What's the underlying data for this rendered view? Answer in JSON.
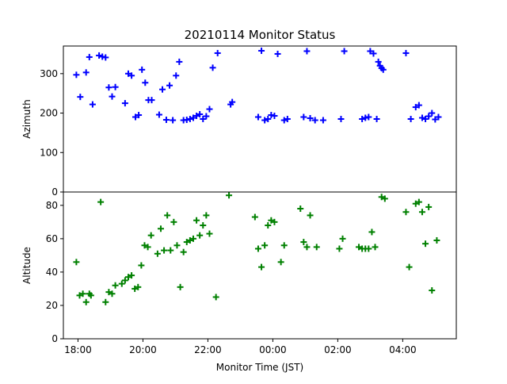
{
  "chart_data": {
    "type": "scatter",
    "title": "20210114 Monitor Status",
    "xlabel": "Monitor Time (JST)",
    "x_unit": "hours",
    "x_ticks": [
      {
        "value": 18,
        "label": "18:00"
      },
      {
        "value": 20,
        "label": "20:00"
      },
      {
        "value": 22,
        "label": "22:00"
      },
      {
        "value": 24,
        "label": "00:00"
      },
      {
        "value": 26,
        "label": "02:00"
      },
      {
        "value": 28,
        "label": "04:00"
      }
    ],
    "xlim": [
      17.55,
      29.65
    ],
    "colors": {
      "azimuth": "#0000ff",
      "altitude": "#008000"
    },
    "panels": [
      {
        "key": "azimuth",
        "ylabel": "Azimuth",
        "ylim": [
          0,
          370
        ],
        "yticks": [
          0,
          100,
          200,
          300
        ],
        "points": [
          [
            17.95,
            297
          ],
          [
            18.07,
            241
          ],
          [
            18.25,
            303
          ],
          [
            18.35,
            342
          ],
          [
            18.45,
            222
          ],
          [
            18.65,
            346
          ],
          [
            18.75,
            343
          ],
          [
            18.85,
            341
          ],
          [
            18.95,
            265
          ],
          [
            19.05,
            242
          ],
          [
            19.15,
            266
          ],
          [
            19.45,
            225
          ],
          [
            19.55,
            300
          ],
          [
            19.65,
            295
          ],
          [
            19.77,
            190
          ],
          [
            19.87,
            195
          ],
          [
            19.97,
            310
          ],
          [
            20.07,
            277
          ],
          [
            20.17,
            233
          ],
          [
            20.27,
            233
          ],
          [
            20.5,
            196
          ],
          [
            20.6,
            260
          ],
          [
            20.72,
            183
          ],
          [
            20.82,
            270
          ],
          [
            20.92,
            182
          ],
          [
            21.02,
            295
          ],
          [
            21.12,
            330
          ],
          [
            21.25,
            182
          ],
          [
            21.35,
            183
          ],
          [
            21.45,
            185
          ],
          [
            21.55,
            188
          ],
          [
            21.65,
            193
          ],
          [
            21.75,
            197
          ],
          [
            21.85,
            185
          ],
          [
            21.95,
            192
          ],
          [
            22.05,
            210
          ],
          [
            22.15,
            315
          ],
          [
            22.3,
            352
          ],
          [
            22.7,
            222
          ],
          [
            22.75,
            228
          ],
          [
            23.55,
            190
          ],
          [
            23.65,
            358
          ],
          [
            23.75,
            182
          ],
          [
            23.85,
            185
          ],
          [
            23.95,
            195
          ],
          [
            24.05,
            193
          ],
          [
            24.15,
            350
          ],
          [
            24.35,
            182
          ],
          [
            24.45,
            185
          ],
          [
            24.95,
            190
          ],
          [
            25.05,
            357
          ],
          [
            25.15,
            187
          ],
          [
            25.3,
            182
          ],
          [
            25.55,
            182
          ],
          [
            26.1,
            185
          ],
          [
            26.2,
            357
          ],
          [
            26.75,
            185
          ],
          [
            26.85,
            188
          ],
          [
            26.95,
            190
          ],
          [
            27.0,
            357
          ],
          [
            27.1,
            351
          ],
          [
            27.2,
            185
          ],
          [
            27.25,
            330
          ],
          [
            27.3,
            320
          ],
          [
            27.35,
            314
          ],
          [
            27.4,
            310
          ],
          [
            28.1,
            352
          ],
          [
            28.25,
            185
          ],
          [
            28.4,
            215
          ],
          [
            28.5,
            220
          ],
          [
            28.6,
            188
          ],
          [
            28.7,
            185
          ],
          [
            28.8,
            192
          ],
          [
            28.9,
            200
          ],
          [
            29.0,
            184
          ],
          [
            29.1,
            190
          ]
        ]
      },
      {
        "key": "altitude",
        "ylabel": "Altitude",
        "ylim": [
          0,
          88
        ],
        "yticks": [
          0,
          20,
          40,
          60,
          80
        ],
        "points": [
          [
            17.95,
            46
          ],
          [
            18.05,
            26
          ],
          [
            18.15,
            27
          ],
          [
            18.25,
            22
          ],
          [
            18.35,
            27
          ],
          [
            18.4,
            26
          ],
          [
            18.7,
            82
          ],
          [
            18.85,
            22
          ],
          [
            18.95,
            28
          ],
          [
            19.05,
            27
          ],
          [
            19.15,
            32
          ],
          [
            19.35,
            33
          ],
          [
            19.45,
            35
          ],
          [
            19.55,
            37
          ],
          [
            19.65,
            38
          ],
          [
            19.75,
            30
          ],
          [
            19.85,
            31
          ],
          [
            19.95,
            44
          ],
          [
            20.05,
            56
          ],
          [
            20.15,
            55
          ],
          [
            20.25,
            62
          ],
          [
            20.45,
            51
          ],
          [
            20.55,
            66
          ],
          [
            20.65,
            53
          ],
          [
            20.75,
            74
          ],
          [
            20.85,
            53
          ],
          [
            20.95,
            70
          ],
          [
            21.05,
            56
          ],
          [
            21.15,
            31
          ],
          [
            21.25,
            52
          ],
          [
            21.35,
            58
          ],
          [
            21.45,
            59
          ],
          [
            21.55,
            60
          ],
          [
            21.65,
            71
          ],
          [
            21.75,
            62
          ],
          [
            21.85,
            68
          ],
          [
            21.95,
            74
          ],
          [
            22.05,
            63
          ],
          [
            22.25,
            25
          ],
          [
            22.65,
            86
          ],
          [
            23.45,
            73
          ],
          [
            23.55,
            54
          ],
          [
            23.65,
            43
          ],
          [
            23.75,
            56
          ],
          [
            23.85,
            68
          ],
          [
            23.95,
            71
          ],
          [
            24.05,
            70
          ],
          [
            24.25,
            46
          ],
          [
            24.35,
            56
          ],
          [
            24.85,
            78
          ],
          [
            24.95,
            58
          ],
          [
            25.05,
            55
          ],
          [
            25.15,
            74
          ],
          [
            25.35,
            55
          ],
          [
            26.05,
            54
          ],
          [
            26.15,
            60
          ],
          [
            26.65,
            55
          ],
          [
            26.75,
            54
          ],
          [
            26.85,
            54
          ],
          [
            26.95,
            54
          ],
          [
            27.05,
            64
          ],
          [
            27.15,
            55
          ],
          [
            27.35,
            85
          ],
          [
            27.45,
            84
          ],
          [
            28.1,
            76
          ],
          [
            28.2,
            43
          ],
          [
            28.4,
            81
          ],
          [
            28.5,
            82
          ],
          [
            28.6,
            76
          ],
          [
            28.7,
            57
          ],
          [
            28.8,
            79
          ],
          [
            28.9,
            29
          ],
          [
            29.05,
            59
          ]
        ]
      }
    ]
  }
}
